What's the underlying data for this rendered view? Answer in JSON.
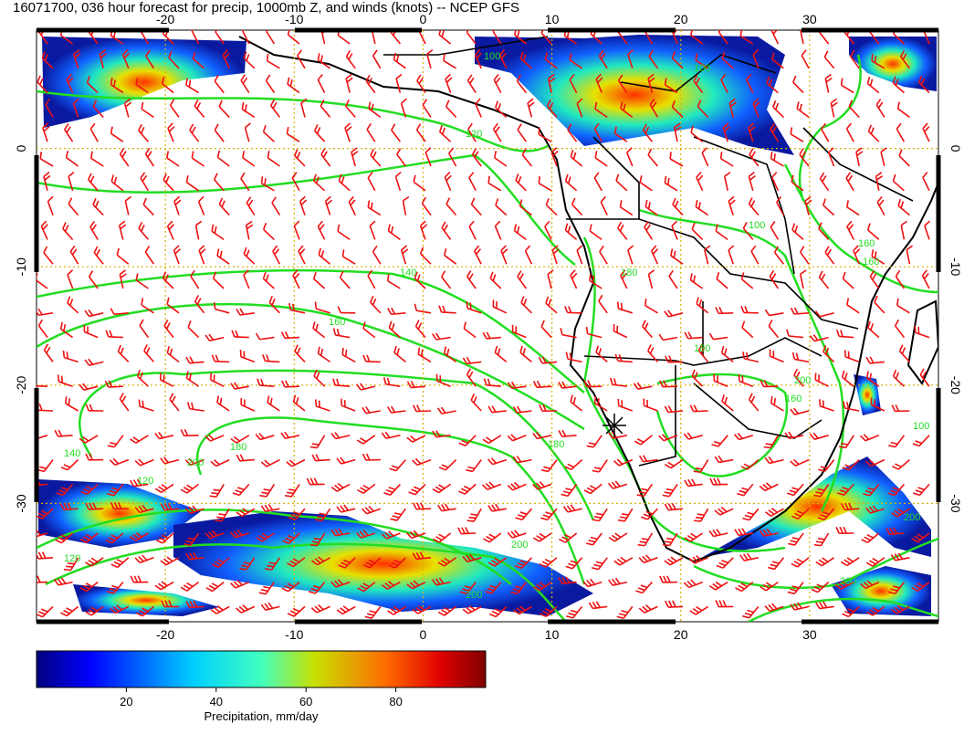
{
  "title": "16071700, 036 hour forecast for precip, 1000mb Z, and winds (knots) -- NCEP GFS",
  "map": {
    "lon_range": [
      -30,
      40
    ],
    "lat_range": [
      -40,
      10
    ],
    "lon_ticks": [
      "-20",
      "-10",
      "0",
      "10",
      "20",
      "30"
    ],
    "lat_ticks": [
      "0",
      "-10",
      "-20",
      "-30"
    ],
    "grid": true,
    "grid_color": "#d8b000",
    "coast_color": "#000000",
    "contour_color": "#22dd22",
    "barb_color": "#ee1111",
    "station_marker": "asterisk-icon"
  },
  "contour_labels": [
    "100",
    "100",
    "120",
    "140",
    "160",
    "160",
    "180",
    "180",
    "180",
    "180",
    "200",
    "200",
    "200",
    "200",
    "160",
    "100",
    "120",
    "140",
    "120",
    "200",
    "200",
    "100",
    "160"
  ],
  "colorbar": {
    "label": "Precipitation, mm/day",
    "ticks": [
      "20",
      "40",
      "60",
      "80"
    ],
    "range": [
      0,
      100
    ]
  }
}
